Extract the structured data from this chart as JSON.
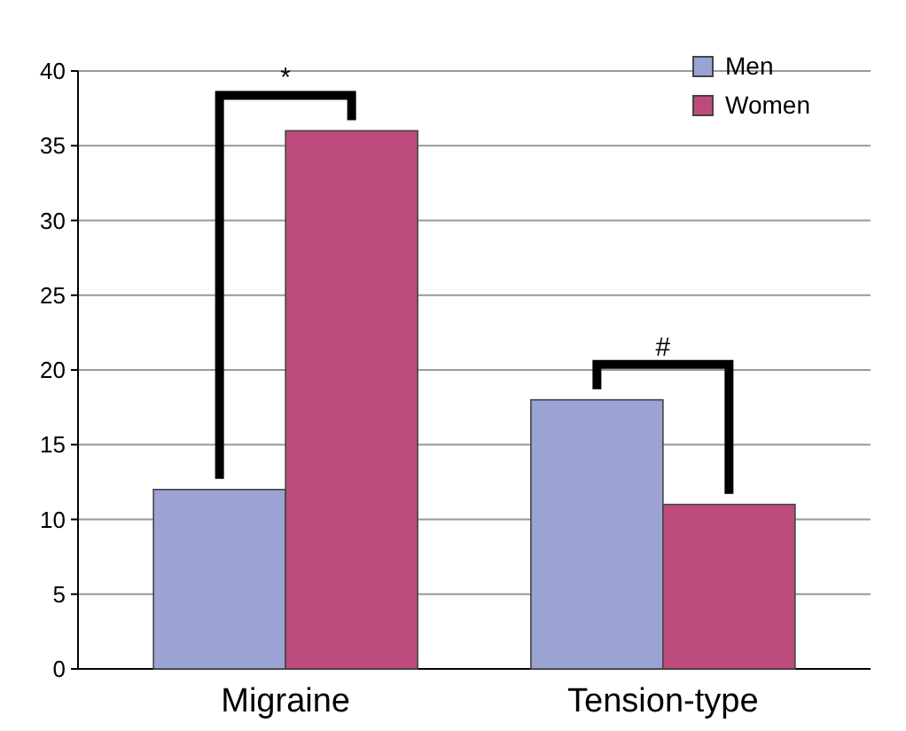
{
  "chart_data": {
    "type": "bar",
    "categories": [
      "Migraine",
      "Tension-type"
    ],
    "series": [
      {
        "name": "Men",
        "color": "#9aa3d4",
        "values": [
          12,
          18
        ]
      },
      {
        "name": "Women",
        "color": "#bd4c7c",
        "values": [
          36,
          11
        ]
      }
    ],
    "ylim": [
      0,
      40
    ],
    "yticks": [
      0,
      5,
      10,
      15,
      20,
      25,
      30,
      35,
      40
    ],
    "grid": "y",
    "legend": "top right",
    "annotations": [
      "*",
      "#"
    ]
  }
}
